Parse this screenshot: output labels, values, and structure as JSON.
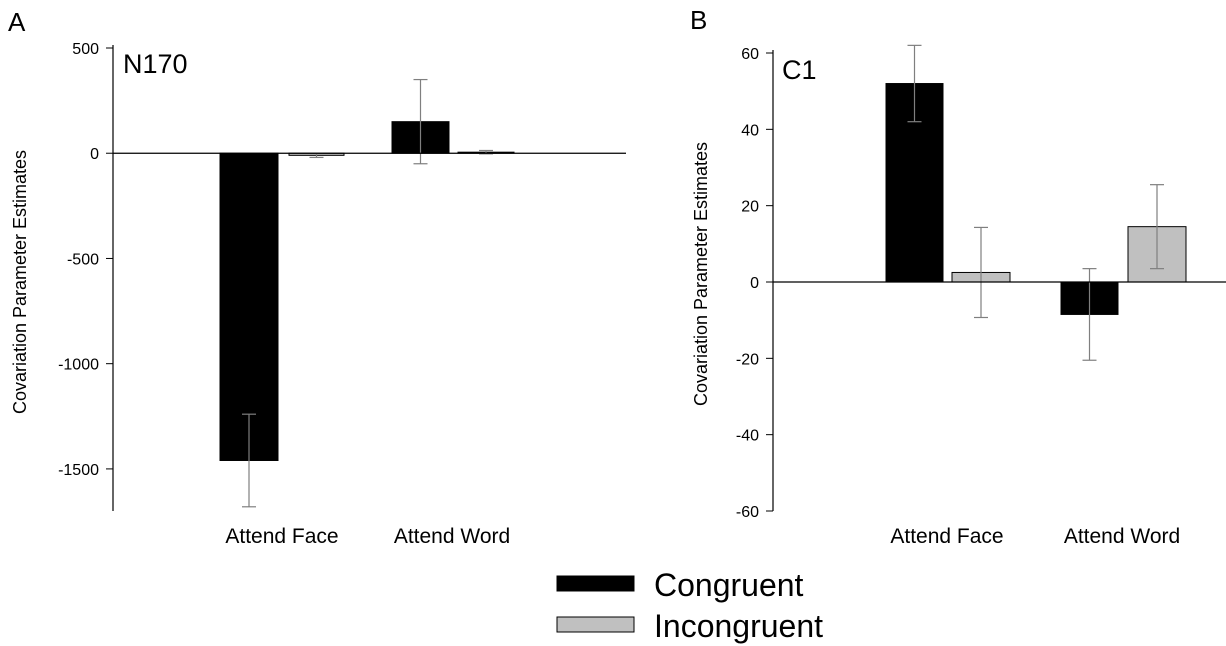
{
  "colors": {
    "congruent": "#000000",
    "incongruent": "#c0c0c0",
    "error_bar": "#7f7f7f",
    "axis": "#000000"
  },
  "legend": {
    "items": [
      {
        "label": "Congruent",
        "color": "#000000"
      },
      {
        "label": "Incongruent",
        "color": "#c0c0c0"
      }
    ]
  },
  "chart_data": [
    {
      "panel": "A",
      "type": "bar",
      "title": "N170",
      "ylabel": "Covariation Parameter Estimates",
      "xlabel": "",
      "ylim": [
        -1700,
        500
      ],
      "yticks": [
        500,
        0,
        -500,
        -1000,
        -1500
      ],
      "ytick_labels": [
        "500",
        "0",
        "-500",
        "-1000",
        "-1500"
      ],
      "grid": false,
      "categories": [
        "Attend Face",
        "Attend Word"
      ],
      "series": [
        {
          "name": "Congruent",
          "values": [
            -1460,
            150
          ],
          "errors": [
            220,
            200
          ]
        },
        {
          "name": "Incongruent",
          "values": [
            -10,
            5
          ],
          "errors": [
            10,
            8
          ]
        }
      ]
    },
    {
      "panel": "B",
      "type": "bar",
      "title": "C1",
      "ylabel": "Covariation Parameter Estimates",
      "xlabel": "",
      "ylim": [
        -60,
        60
      ],
      "yticks": [
        60,
        40,
        20,
        0,
        -20,
        -40,
        -60
      ],
      "ytick_labels": [
        "60",
        "40",
        "20",
        "0",
        "-20",
        "-40",
        "-60"
      ],
      "grid": false,
      "categories": [
        "Attend Face",
        "Attend Word"
      ],
      "series": [
        {
          "name": "Congruent",
          "values": [
            52,
            -8.5
          ],
          "errors": [
            10,
            12
          ]
        },
        {
          "name": "Incongruent",
          "values": [
            2.5,
            14.5
          ],
          "errors": [
            11.8,
            11
          ]
        }
      ]
    }
  ]
}
